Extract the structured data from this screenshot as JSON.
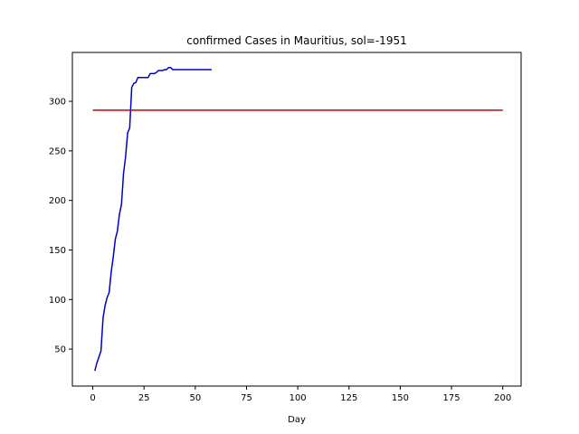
{
  "chart_data": {
    "type": "line",
    "title": "confirmed Cases in Mauritius, sol=-1951",
    "xlabel": "Day",
    "ylabel": "",
    "xlim": [
      -9.95,
      208.95
    ],
    "ylim": [
      12.7,
      349.3
    ],
    "xticks": [
      0,
      25,
      50,
      75,
      100,
      125,
      150,
      175,
      200
    ],
    "yticks": [
      50,
      100,
      150,
      200,
      250,
      300
    ],
    "grid": false,
    "series": [
      {
        "color": "#0000cc",
        "x": [
          1,
          2,
          3,
          4,
          5,
          6,
          7,
          8,
          9,
          10,
          11,
          12,
          13,
          14,
          15,
          16,
          17,
          18,
          19,
          20,
          21,
          22,
          23,
          24,
          25,
          26,
          27,
          28,
          29,
          30,
          31,
          32,
          33,
          34,
          35,
          36,
          37,
          38,
          39,
          40,
          41,
          42,
          43,
          44,
          45,
          46,
          47,
          48,
          49,
          50,
          51,
          52,
          53,
          54,
          55,
          56,
          57,
          58
        ],
        "y": [
          28,
          36,
          42,
          48,
          81,
          94,
          102,
          107,
          128,
          143,
          161,
          169,
          186,
          196,
          227,
          244,
          268,
          273,
          314,
          318,
          319,
          324,
          324,
          324,
          324,
          324,
          324,
          328,
          328,
          328,
          329,
          331,
          331,
          331,
          332,
          332,
          334,
          334,
          332,
          332,
          332,
          332,
          332,
          332,
          332,
          332,
          332,
          332,
          332,
          332,
          332,
          332,
          332,
          332,
          332,
          332,
          332,
          332
        ]
      },
      {
        "color": "#cc0000",
        "x": [
          0,
          200
        ],
        "y": [
          291,
          291
        ]
      }
    ]
  }
}
